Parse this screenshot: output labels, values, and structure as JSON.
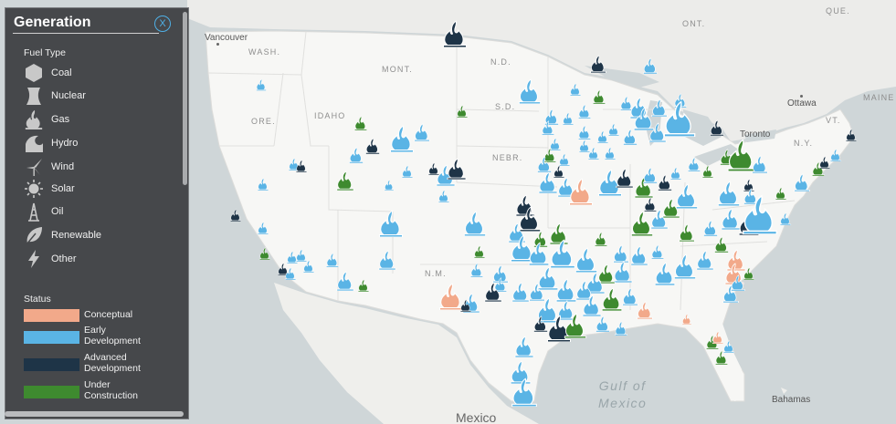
{
  "map": {
    "place_labels": [
      {
        "text": "Vancouver",
        "kind": "city"
      },
      {
        "text": "WASH.",
        "kind": "state"
      },
      {
        "text": "MONT.",
        "kind": "state"
      },
      {
        "text": "N.D.",
        "kind": "state"
      },
      {
        "text": "ONT.",
        "kind": "state"
      },
      {
        "text": "QUE.",
        "kind": "state"
      },
      {
        "text": "MAINE",
        "kind": "state"
      },
      {
        "text": "IDAHO",
        "kind": "state"
      },
      {
        "text": "ORE.",
        "kind": "state"
      },
      {
        "text": "S.D.",
        "kind": "state"
      },
      {
        "text": "Ottawa",
        "kind": "city"
      },
      {
        "text": "VT.",
        "kind": "state"
      },
      {
        "text": "Toronto",
        "kind": "city"
      },
      {
        "text": "N.Y.",
        "kind": "state"
      },
      {
        "text": "NEBR.",
        "kind": "state"
      },
      {
        "text": "N.M.",
        "kind": "state"
      },
      {
        "text": "Gulf of\nMexico",
        "kind": "water"
      },
      {
        "text": "Bahamas",
        "kind": "city"
      },
      {
        "text": "Mexico",
        "kind": "country"
      }
    ]
  },
  "legend": {
    "title": "Generation",
    "close_label": "X",
    "fuel_type_heading": "Fuel Type",
    "fuel_types": [
      {
        "label": "Coal",
        "icon": "coal-icon"
      },
      {
        "label": "Nuclear",
        "icon": "nuclear-icon"
      },
      {
        "label": "Gas",
        "icon": "gas-icon"
      },
      {
        "label": "Hydro",
        "icon": "hydro-icon"
      },
      {
        "label": "Wind",
        "icon": "wind-icon"
      },
      {
        "label": "Solar",
        "icon": "solar-icon"
      },
      {
        "label": "Oil",
        "icon": "oil-icon"
      },
      {
        "label": "Renewable",
        "icon": "renewable-icon"
      },
      {
        "label": "Other",
        "icon": "other-icon"
      }
    ],
    "status_heading": "Status",
    "statuses": [
      {
        "label": "Conceptual",
        "color": "#f2a98a"
      },
      {
        "label": "Early\nDevelopment",
        "color": "#5ab4e5"
      },
      {
        "label": "Advanced\nDevelopment",
        "color": "#1e3447"
      },
      {
        "label": "Under\nConstruction",
        "color": "#3e8a2f"
      }
    ]
  }
}
